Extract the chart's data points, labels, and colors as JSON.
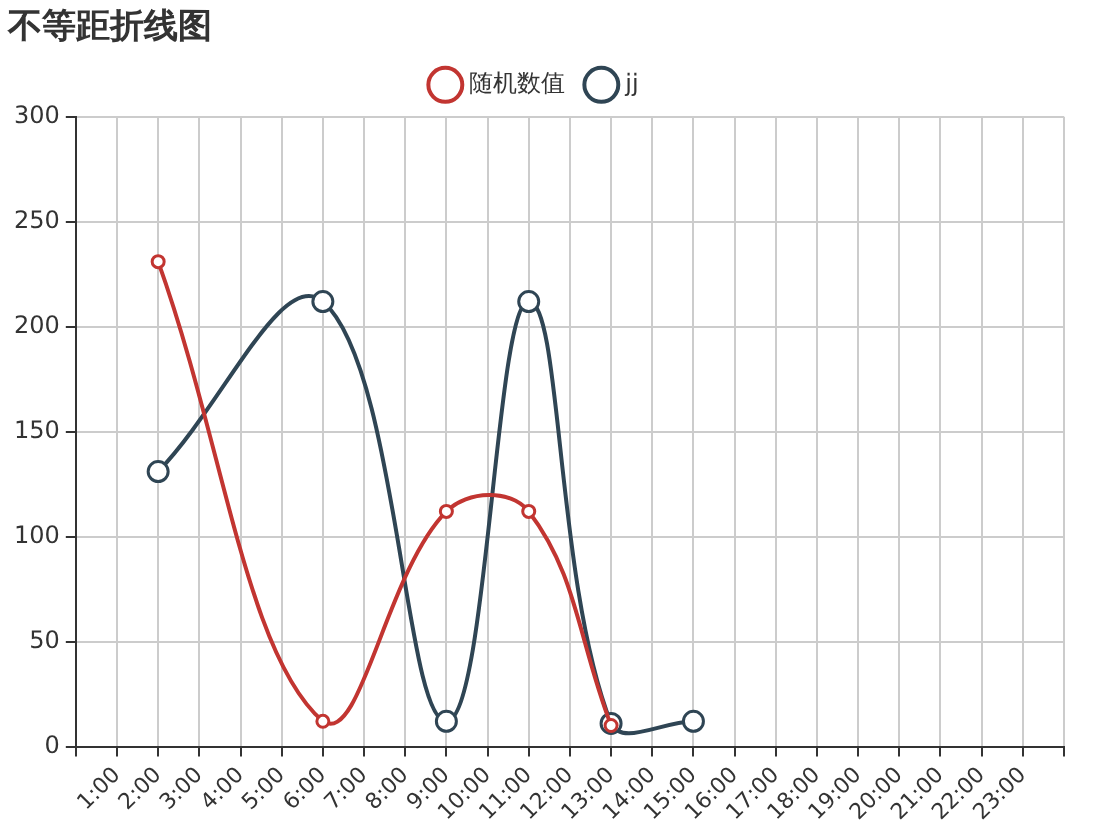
{
  "chart_data": {
    "type": "line",
    "title": "不等距折线图",
    "legend": "top",
    "grid": true,
    "marker": "circle",
    "line_style": "solid",
    "xlim": [
      0,
      24
    ],
    "xticks": [
      {
        "value": 0,
        "label": null
      },
      {
        "value": 1,
        "label": "1:00"
      },
      {
        "value": 2,
        "label": "2:00"
      },
      {
        "value": 3,
        "label": "3:00"
      },
      {
        "value": 4,
        "label": "4:00"
      },
      {
        "value": 5,
        "label": "5:00"
      },
      {
        "value": 6,
        "label": "6:00"
      },
      {
        "value": 7,
        "label": "7:00"
      },
      {
        "value": 8,
        "label": "8:00"
      },
      {
        "value": 9,
        "label": "9:00"
      },
      {
        "value": 10,
        "label": "10:00"
      },
      {
        "value": 11,
        "label": "11:00"
      },
      {
        "value": 12,
        "label": "12:00"
      },
      {
        "value": 13,
        "label": "13:00"
      },
      {
        "value": 14,
        "label": "14:00"
      },
      {
        "value": 15,
        "label": "15:00"
      },
      {
        "value": 16,
        "label": "16:00"
      },
      {
        "value": 17,
        "label": "17:00"
      },
      {
        "value": 18,
        "label": "18:00"
      },
      {
        "value": 19,
        "label": "19:00"
      },
      {
        "value": 20,
        "label": "20:00"
      },
      {
        "value": 21,
        "label": "21:00"
      },
      {
        "value": 22,
        "label": "22:00"
      },
      {
        "value": 23,
        "label": "23:00"
      },
      {
        "value": 24,
        "label": null
      }
    ],
    "ylim": [
      0,
      300
    ],
    "yticks": [
      0,
      50,
      100,
      150,
      200,
      250,
      300
    ],
    "series": [
      {
        "name": "随机数值",
        "color": "#c23531",
        "x": [
          2,
          6,
          9,
          11,
          13
        ],
        "values": [
          231,
          12,
          112,
          112,
          10
        ]
      },
      {
        "name": "jj",
        "color": "#2f4554",
        "x": [
          2,
          6,
          9,
          11,
          13,
          15
        ],
        "values": [
          131,
          212,
          12,
          212,
          11,
          12
        ]
      }
    ]
  }
}
